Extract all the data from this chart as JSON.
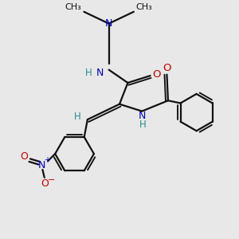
{
  "background_color": "#e8e8e8",
  "bond_color": "#111111",
  "N_color": "#0000cc",
  "O_color": "#cc0000",
  "H_color": "#2a8a8a",
  "line_width": 1.6,
  "fig_size": [
    3.0,
    3.0
  ],
  "dpi": 100,
  "xlim": [
    0,
    10
  ],
  "ylim": [
    0,
    10
  ]
}
